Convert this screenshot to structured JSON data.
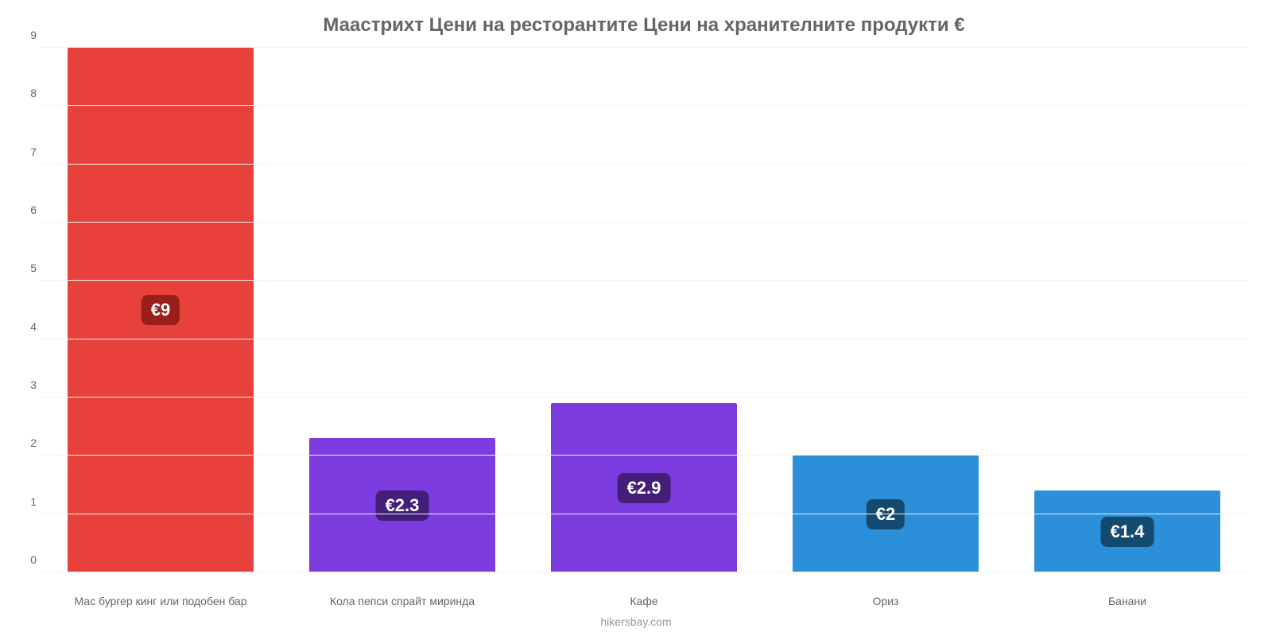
{
  "chart": {
    "type": "bar",
    "title": "Маастрихт Цени на ресторантите Цени на хранителните продукти €",
    "title_color": "#666666",
    "title_fontsize": 24,
    "subtitle": "hikersbay.com",
    "subtitle_color": "#999999",
    "subtitle_fontsize": 14,
    "background_color": "#ffffff",
    "grid_color": "#f2f2f2",
    "axis_line_color": "#bbbbbb",
    "label_color": "#666666",
    "label_fontsize": 14,
    "value_label_fontsize": 22,
    "value_label_text_color": "#ffffff",
    "bar_width": 0.77,
    "y": {
      "min": 0,
      "max": 9,
      "tick_step": 1,
      "ticks": [
        0,
        1,
        2,
        3,
        4,
        5,
        6,
        7,
        8,
        9
      ]
    },
    "categories": [
      "Мас бургер кинг или подобен бар",
      "Кола пепси спрайт миринда",
      "Кафе",
      "Ориз",
      "Банани"
    ],
    "values": [
      9,
      2.3,
      2.9,
      2,
      1.4
    ],
    "value_labels": [
      "€9",
      "€2.3",
      "€2.9",
      "€2",
      "€1.4"
    ],
    "bar_colors": [
      "#e8403a",
      "#7c3ce0",
      "#7c3ce0",
      "#2b90d9",
      "#2b90d9"
    ],
    "value_badge_colors": [
      "#9a1e1c",
      "#431f7a",
      "#431f7a",
      "#134a70",
      "#134a70"
    ]
  }
}
